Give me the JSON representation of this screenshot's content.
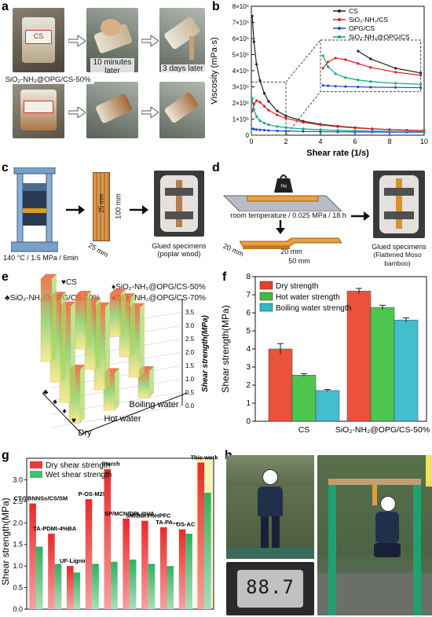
{
  "panels": {
    "a": {
      "label": "a",
      "captions": [
        "CS",
        "10 minutes later",
        "3 days later"
      ],
      "sample2": "SiO₂-NH₂@OPG/CS-50%",
      "jar_label": "CS"
    },
    "b": {
      "label": "b",
      "chart_data": {
        "type": "line",
        "xlabel": "Shear rate (1/s)",
        "ylabel": "Viscosity (mPa·s)",
        "xlim": [
          0,
          10
        ],
        "ylim": [
          0,
          8000000
        ],
        "x_ticks": [
          "0",
          "2",
          "4",
          "6",
          "8",
          "10"
        ],
        "y_ticks": [
          "0",
          "1×10⁶",
          "2×10⁶",
          "3×10⁶",
          "4×10⁶",
          "5×10⁶",
          "6×10⁶",
          "7×10⁶",
          "8×10⁶"
        ],
        "legend_position": "top-right",
        "series": [
          {
            "name": "CS",
            "color": "#222222",
            "x": [
              0.05,
              0.15,
              0.3,
              0.5,
              0.75,
              1.0,
              1.5,
              2,
              3,
              4,
              5,
              6,
              7,
              8,
              9,
              10
            ],
            "values": [
              7400000,
              5800000,
              4400000,
              3400000,
              2600000,
              2100000,
              1500000,
              1200000,
              870000,
              680000,
              560000,
              470000,
              400000,
              350000,
              310000,
              280000
            ]
          },
          {
            "name": "SiO₂-NH₂/CS",
            "color": "#e02020",
            "x": [
              0.05,
              0.15,
              0.3,
              0.5,
              0.75,
              1.0,
              1.5,
              2,
              3,
              4,
              5,
              6,
              7,
              8,
              9,
              10
            ],
            "values": [
              1500000,
              1900000,
              2150000,
              2050000,
              1800000,
              1550000,
              1250000,
              1050000,
              800000,
              640000,
              530000,
              450000,
              390000,
              345000,
              310000,
              280000
            ]
          },
          {
            "name": "OPG/CS",
            "color": "#2050c8",
            "x": [
              0.05,
              0.15,
              0.3,
              0.5,
              0.75,
              1.0,
              1.5,
              2,
              3,
              4,
              5,
              6,
              7,
              8,
              9,
              10
            ],
            "values": [
              400000,
              380000,
              350000,
              330000,
              310000,
              290000,
              270000,
              255000,
              235000,
              220000,
              210000,
              200000,
              195000,
              190000,
              185000,
              180000
            ]
          },
          {
            "name": "SiO₂-NH₂@OPG/CS",
            "color": "#10a880",
            "x": [
              0.05,
              0.15,
              0.3,
              0.5,
              0.75,
              1.0,
              1.5,
              2,
              3,
              4,
              5,
              6,
              7,
              8,
              9,
              10
            ],
            "values": [
              2300000,
              1600000,
              1150000,
              900000,
              750000,
              650000,
              540000,
              470000,
              390000,
              340000,
              300000,
              275000,
              255000,
              240000,
              225000,
              215000
            ]
          }
        ]
      }
    },
    "c": {
      "label": "c",
      "process": "140 °C / 1.5 MPa / 6min",
      "dims": [
        "25 mm",
        "100 mm",
        "25 mm"
      ],
      "specimen_caption": [
        "Glued specimens",
        "(poplar wood)"
      ]
    },
    "d": {
      "label": "d",
      "process": "room temperature / 0.025 MPa / 18 h",
      "dims": [
        "20 mm",
        "20 mm",
        "50 mm"
      ],
      "weight_label": "1kg",
      "specimen_caption": [
        "Glued specimens",
        "(Flattened Moso bamboo)"
      ]
    },
    "e": {
      "label": "e",
      "legend": [
        {
          "symbol": "♥",
          "text": "CS"
        },
        {
          "symbol": "♦",
          "text": "SiO₂-NH₂@OPG/CS-50%"
        },
        {
          "symbol": "♣",
          "text": "SiO₂-NH₂@OPG/CS-30%"
        },
        {
          "symbol": "♠",
          "text": "SiO₂-NH₂@OPG/CS-70%"
        }
      ],
      "chart_data": {
        "type": "bar",
        "zlabel": "Shear strength(MPa)",
        "z_ticks": [
          "0.0",
          "0.5",
          "1.0",
          "1.5",
          "2.0",
          "2.5",
          "3.0",
          "3.5"
        ],
        "categories": [
          "Dry",
          "Hot water",
          "Boiling water"
        ],
        "series_symbols": [
          "♣",
          "♠",
          "♦",
          "♥"
        ],
        "series": [
          {
            "name": "SiO₂-NH₂@OPG/CS-30%",
            "values": [
              3.1,
              2.0,
              1.6
            ]
          },
          {
            "name": "SiO₂-NH₂@OPG/CS-70%",
            "values": [
              3.2,
              2.5,
              2.2
            ]
          },
          {
            "name": "SiO₂-NH₂@OPG/CS-50%",
            "values": [
              3.6,
              3.1,
              2.6
            ]
          },
          {
            "name": "CS",
            "values": [
              2.0,
              1.4,
              1.0
            ]
          }
        ]
      }
    },
    "f": {
      "label": "f",
      "chart_data": {
        "type": "bar",
        "ylabel": "Shear strength(MPa)",
        "ylim": [
          0,
          8
        ],
        "y_ticks": [
          "0",
          "1",
          "2",
          "3",
          "4",
          "5",
          "6",
          "7",
          "8"
        ],
        "categories": [
          "CS",
          "SiO₂-NH₂@OPG/CS-50%"
        ],
        "legend_position": "top-left",
        "series": [
          {
            "name": "Dry strength",
            "values": [
              4.0,
              7.2
            ],
            "errors": [
              0.3,
              0.15
            ],
            "color": "#e8402a"
          },
          {
            "name": "Hot water strength",
            "values": [
              2.55,
              6.3
            ],
            "errors": [
              0.08,
              0.12
            ],
            "color": "#3cc03c"
          },
          {
            "name": "Boiling water strength",
            "values": [
              1.7,
              5.6
            ],
            "errors": [
              0.06,
              0.12
            ],
            "color": "#30b8c8"
          }
        ]
      }
    },
    "g": {
      "label": "g",
      "chart_data": {
        "type": "bar",
        "ylabel": "Shear strength(MPa)",
        "ylim": [
          0,
          3.5
        ],
        "y_ticks": [
          "0.0",
          "0.5",
          "1.0",
          "1.5",
          "2.0",
          "2.5",
          "3.0"
        ],
        "legend_position": "top-left",
        "categories": [
          "CT@BNNSs/CS/SM",
          "TA-PDMI-4%BA",
          "UF-Lignin",
          "P-OS-M25",
          "Starch",
          "SP/MCN/DPL@VA",
          "SM/BD/5%HPFC",
          "TA-PA₂₀",
          "OS-AC",
          "This work"
        ],
        "series": [
          {
            "name": "Dry shear strength",
            "values": [
              2.45,
              1.75,
              1.0,
              2.55,
              3.25,
              2.1,
              2.05,
              1.9,
              1.85,
              3.4
            ],
            "color": "#e83a3a"
          },
          {
            "name": "Wet shear strength",
            "values": [
              1.45,
              1.05,
              0.85,
              1.05,
              1.1,
              1.15,
              1.05,
              1.0,
              1.75,
              2.7
            ],
            "color": "#40c070"
          }
        ]
      }
    },
    "h": {
      "label": "h",
      "scale_reading": "88.7"
    }
  }
}
